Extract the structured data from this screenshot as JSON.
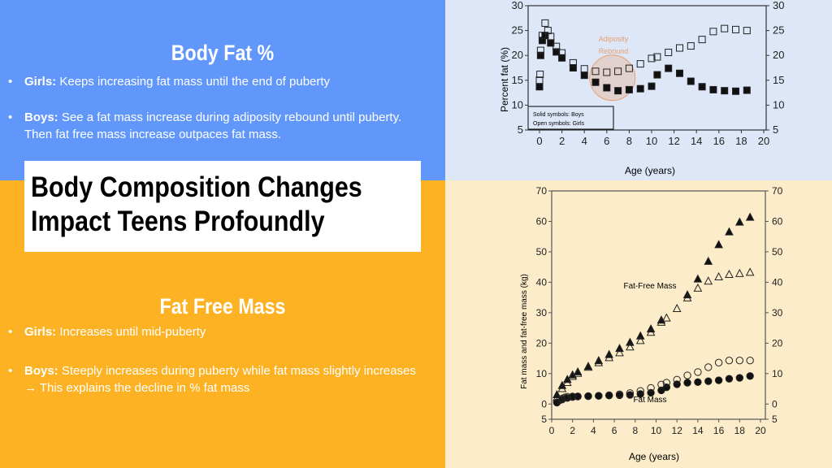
{
  "body_fat": {
    "heading": "Body Fat %",
    "bullets": [
      {
        "label": "Girls:",
        "text": " Keeps increasing fat mass until the end of puberty"
      },
      {
        "label": "Boys:",
        "text": " See a fat mass increase during adiposity rebound until puberty. Then fat free mass increase outpaces fat mass."
      }
    ]
  },
  "title": {
    "line1": "Body Composition Changes",
    "line2": "Impact Teens Profoundly"
  },
  "fat_free": {
    "heading": "Fat Free Mass",
    "bullets": [
      {
        "label": "Girls:",
        "text": " Increases until mid-puberty"
      },
      {
        "label": "Boys:",
        "text": " Steeply increases during puberty while fat mass slightly increases →  This explains the decline in % fat mass"
      }
    ]
  },
  "colors": {
    "blue": "#6197fb",
    "orange": "#fdb224",
    "annotation": "#e8a070"
  },
  "chart_data": [
    {
      "type": "scatter",
      "xlabel": "Age (years)",
      "ylabel": "Percent fat (%)",
      "xlim": [
        0,
        20
      ],
      "ylim": [
        5,
        30
      ],
      "xticks": [
        0,
        2,
        4,
        6,
        8,
        10,
        12,
        14,
        16,
        18,
        20
      ],
      "yticks": [
        5,
        10,
        15,
        20,
        25,
        30
      ],
      "legend": {
        "line1": "Solid symbols: Boys",
        "line2": "Open symbols: Girls",
        "placement": "bottom-left"
      },
      "annotation": {
        "text1": "Adiposity",
        "text2": "Rebound",
        "x": 6.5,
        "y": 15.5
      },
      "series": [
        {
          "marker": "filled-square",
          "x": [
            0,
            0.1,
            0.25,
            0.5,
            1,
            1.5,
            2,
            3,
            4,
            5,
            6,
            7,
            8,
            9,
            10,
            10.5,
            11.5,
            12.5,
            13.5,
            14.5,
            15.5,
            16.5,
            17.5,
            18.5
          ],
          "y": [
            13.7,
            20,
            23,
            24,
            22.5,
            20.7,
            19.5,
            17.5,
            16,
            14.6,
            13.5,
            12.9,
            13.1,
            13.3,
            13.8,
            16.1,
            17.4,
            16.4,
            14.8,
            13.7,
            13.1,
            12.9,
            12.8,
            13
          ]
        },
        {
          "marker": "open-square",
          "x": [
            0,
            0.05,
            0.1,
            0.25,
            0.5,
            0.75,
            1,
            1.5,
            2,
            3,
            4,
            5,
            6,
            7,
            8,
            9,
            10,
            10.5,
            11.5,
            12.5,
            13.5,
            14.5,
            15.5,
            16.5,
            17.5,
            18.5
          ],
          "y": [
            15,
            16.2,
            21,
            24,
            26.5,
            25,
            23.8,
            21.8,
            20.5,
            18.5,
            17.3,
            16.8,
            16.6,
            16.8,
            17.4,
            18.3,
            19.4,
            19.7,
            20.6,
            21.5,
            21.9,
            23.2,
            24.8,
            25.4,
            25.2,
            25
          ]
        }
      ]
    },
    {
      "type": "scatter",
      "xlabel": "Age (years)",
      "ylabel": "Fat mass and fat-free mass (kg)",
      "xlim": [
        0,
        20
      ],
      "ylim": [
        -5,
        70
      ],
      "xticks": [
        0,
        2,
        4,
        6,
        8,
        10,
        12,
        14,
        16,
        18,
        20
      ],
      "yticks": [
        0,
        10,
        20,
        30,
        40,
        50,
        60,
        70
      ],
      "ytick_bottom_label": "5",
      "labels": {
        "ffm": "Fat-Free Mass",
        "fm": "Fat Mass"
      },
      "series": [
        {
          "marker": "filled-triangle",
          "x": [
            0.5,
            1,
            1.5,
            2,
            2.5,
            3.5,
            4.5,
            5.5,
            6.5,
            7.5,
            8.5,
            9.5,
            10.5,
            13,
            14,
            15,
            16,
            17,
            18,
            19
          ],
          "y": [
            3,
            6,
            8,
            9.5,
            10.5,
            12.3,
            14.2,
            16.2,
            18.2,
            20.2,
            22.3,
            24.6,
            27.5,
            35.8,
            41,
            46.8,
            52.3,
            56.5,
            59.7,
            61.3
          ]
        },
        {
          "marker": "open-triangle",
          "x": [
            0.5,
            1,
            1.5,
            2,
            2.5,
            3.5,
            4.5,
            5.5,
            6.5,
            7.5,
            8.5,
            9.5,
            10.5,
            11,
            12,
            13,
            14,
            15,
            16,
            17,
            18,
            19
          ],
          "y": [
            2,
            5,
            7,
            9,
            10,
            12,
            13.5,
            15.2,
            16.8,
            18.7,
            20.8,
            23.5,
            26.8,
            28.2,
            31.3,
            34.8,
            38,
            40.3,
            41.7,
            42.5,
            42.8,
            43.2
          ]
        },
        {
          "marker": "filled-circle",
          "x": [
            0.5,
            1,
            1.5,
            2,
            2.5,
            3.5,
            4.5,
            5.5,
            6.5,
            7.5,
            8.5,
            9.5,
            10.5,
            11,
            12,
            13,
            14,
            15,
            16,
            17,
            18,
            19
          ],
          "y": [
            0.5,
            1.5,
            2,
            2.3,
            2.5,
            2.6,
            2.7,
            2.8,
            2.9,
            3,
            3.3,
            3.7,
            4.5,
            5.5,
            6.5,
            7,
            7.2,
            7.5,
            7.8,
            8.3,
            8.6,
            9.2
          ]
        },
        {
          "marker": "open-circle",
          "x": [
            0.5,
            0.75,
            1,
            1.25,
            1.5,
            2,
            2.5,
            3.5,
            4.5,
            5.5,
            6.5,
            7.5,
            8.5,
            9.5,
            10.5,
            11,
            12,
            13,
            14,
            15,
            16,
            17,
            18,
            19
          ],
          "y": [
            0.5,
            1.2,
            1.8,
            2.2,
            2.4,
            2.5,
            2.5,
            2.6,
            2.7,
            2.9,
            3.2,
            3.6,
            4.3,
            5.3,
            6.4,
            7,
            8,
            9.4,
            10.5,
            12.1,
            13.6,
            14.3,
            14.3,
            14.3
          ]
        }
      ]
    }
  ]
}
